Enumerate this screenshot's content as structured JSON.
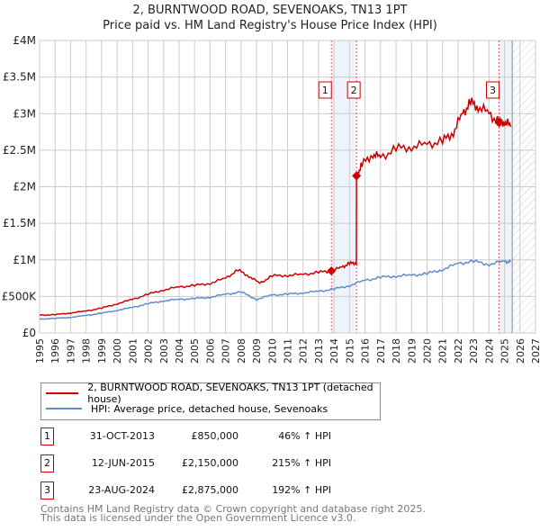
{
  "chart_data": {
    "type": "line",
    "title": "2, BURNTWOOD ROAD, SEVENOAKS, TN13 1PT",
    "subtitle": "Price paid vs. HM Land Registry's House Price Index (HPI)",
    "xlim": [
      1995,
      2027
    ],
    "ylim": [
      0,
      4000000
    ],
    "x_ticks": [
      "1995",
      "1996",
      "1997",
      "1998",
      "1999",
      "2000",
      "2001",
      "2002",
      "2003",
      "2004",
      "2005",
      "2006",
      "2007",
      "2008",
      "2009",
      "2010",
      "2011",
      "2012",
      "2013",
      "2014",
      "2015",
      "2016",
      "2017",
      "2018",
      "2019",
      "2020",
      "2021",
      "2022",
      "2023",
      "2024",
      "2025",
      "2026",
      "2027"
    ],
    "y_ticks": [
      {
        "v": 0,
        "label": "£0"
      },
      {
        "v": 500000,
        "label": "£500K"
      },
      {
        "v": 1000000,
        "label": "£1M"
      },
      {
        "v": 1500000,
        "label": "£1.5M"
      },
      {
        "v": 2000000,
        "label": "£2M"
      },
      {
        "v": 2500000,
        "label": "£2.5M"
      },
      {
        "v": 3000000,
        "label": "£3M"
      },
      {
        "v": 3500000,
        "label": "£3.5M"
      },
      {
        "v": 4000000,
        "label": "£4M"
      }
    ],
    "grid": true,
    "series": [
      {
        "name": "2, BURNTWOOD ROAD, SEVENOAKS, TN13 1PT (detached house)",
        "color": "#cc0000",
        "x": [
          1995,
          1996,
          1997,
          1998,
          1999,
          2000,
          2001,
          2002,
          2003,
          2004,
          2005,
          2006,
          2007,
          2007.8,
          2008.5,
          2009.2,
          2010,
          2011,
          2012,
          2013,
          2013.83,
          2014.5,
          2015,
          2015.44,
          2015.45,
          2015.8,
          2016.5,
          2017,
          2018,
          2019,
          2020,
          2021,
          2021.7,
          2022.3,
          2022.8,
          2023.3,
          2024,
          2024.65,
          2025,
          2025.4
        ],
        "values": [
          245000,
          250000,
          275000,
          300000,
          340000,
          400000,
          460000,
          530000,
          590000,
          630000,
          650000,
          680000,
          750000,
          860000,
          780000,
          680000,
          780000,
          790000,
          800000,
          830000,
          850000,
          900000,
          950000,
          960000,
          2150000,
          2300000,
          2450000,
          2400000,
          2520000,
          2550000,
          2580000,
          2620000,
          2750000,
          3000000,
          3150000,
          3100000,
          3000000,
          2875000,
          2900000,
          2820000
        ]
      },
      {
        "name": "HPI: Average price, detached house, Sevenoaks",
        "color": "#5b8fd0",
        "x": [
          1995,
          1996,
          1997,
          1998,
          1999,
          2000,
          2001,
          2002,
          2003,
          2004,
          2005,
          2006,
          2007,
          2008,
          2009,
          2010,
          2011,
          2012,
          2013,
          2014,
          2015,
          2016,
          2017,
          2018,
          2019,
          2020,
          2021,
          2022,
          2023,
          2024,
          2025,
          2025.4
        ],
        "values": [
          190000,
          200000,
          215000,
          240000,
          270000,
          310000,
          350000,
          400000,
          440000,
          460000,
          470000,
          490000,
          530000,
          560000,
          460000,
          520000,
          530000,
          550000,
          570000,
          600000,
          650000,
          720000,
          760000,
          780000,
          790000,
          810000,
          870000,
          950000,
          980000,
          940000,
          980000,
          970000
        ]
      }
    ],
    "transactions": [
      {
        "id": "1",
        "x": 2013.83,
        "value": 850000,
        "date": "31-OCT-2013",
        "price": "£850,000",
        "hpi": "46% ↑ HPI"
      },
      {
        "id": "2",
        "x": 2015.45,
        "value": 2150000,
        "date": "12-JUN-2015",
        "price": "£2,150,000",
        "hpi": "215% ↑ HPI"
      },
      {
        "id": "3",
        "x": 2024.65,
        "value": 2875000,
        "date": "23-AUG-2024",
        "price": "£2,875,000",
        "hpi": "192% ↑ HPI"
      }
    ],
    "data_end": 2025.5
  },
  "footer": {
    "line1": "Contains HM Land Registry data © Crown copyright and database right 2025.",
    "line2": "This data is licensed under the Open Government Licence v3.0."
  }
}
